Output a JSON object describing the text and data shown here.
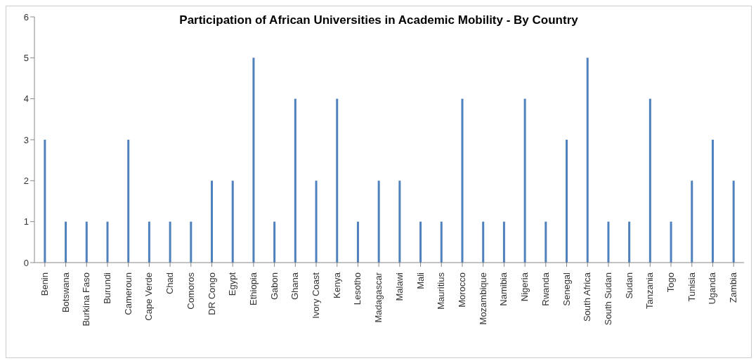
{
  "chart_data": {
    "type": "bar",
    "title": "Participation of African Universities in Academic Mobility - By Country",
    "categories": [
      "Benin",
      "Botswana",
      "Burkina Faso",
      "Burundi",
      "Cameroun",
      "Cape Verde",
      "Chad",
      "Comoros",
      "DR Congo",
      "Egypt",
      "Ethiopia",
      "Gabon",
      "Ghana",
      "Ivory Coast",
      "Kenya",
      "Lesotho",
      "Madagascar",
      "Malawi",
      "Mali",
      "Mauritius",
      "Morocco",
      "Mozambique",
      "Namibia",
      "Nigeria",
      "Rwanda",
      "Senegal",
      "South Africa",
      "South Sudan",
      "Sudan",
      "Tanzania",
      "Togo",
      "Tunisia",
      "Uganda",
      "Zambia"
    ],
    "values": [
      3,
      1,
      1,
      1,
      3,
      1,
      1,
      1,
      2,
      2,
      5,
      1,
      4,
      2,
      4,
      1,
      2,
      2,
      1,
      1,
      4,
      1,
      1,
      4,
      1,
      3,
      5,
      1,
      1,
      4,
      1,
      2,
      3,
      2
    ],
    "color": "#4f81bd",
    "ylim": [
      0,
      6
    ],
    "yticks": [
      0,
      1,
      2,
      3,
      4,
      5,
      6
    ],
    "grid": false,
    "legend": false
  }
}
